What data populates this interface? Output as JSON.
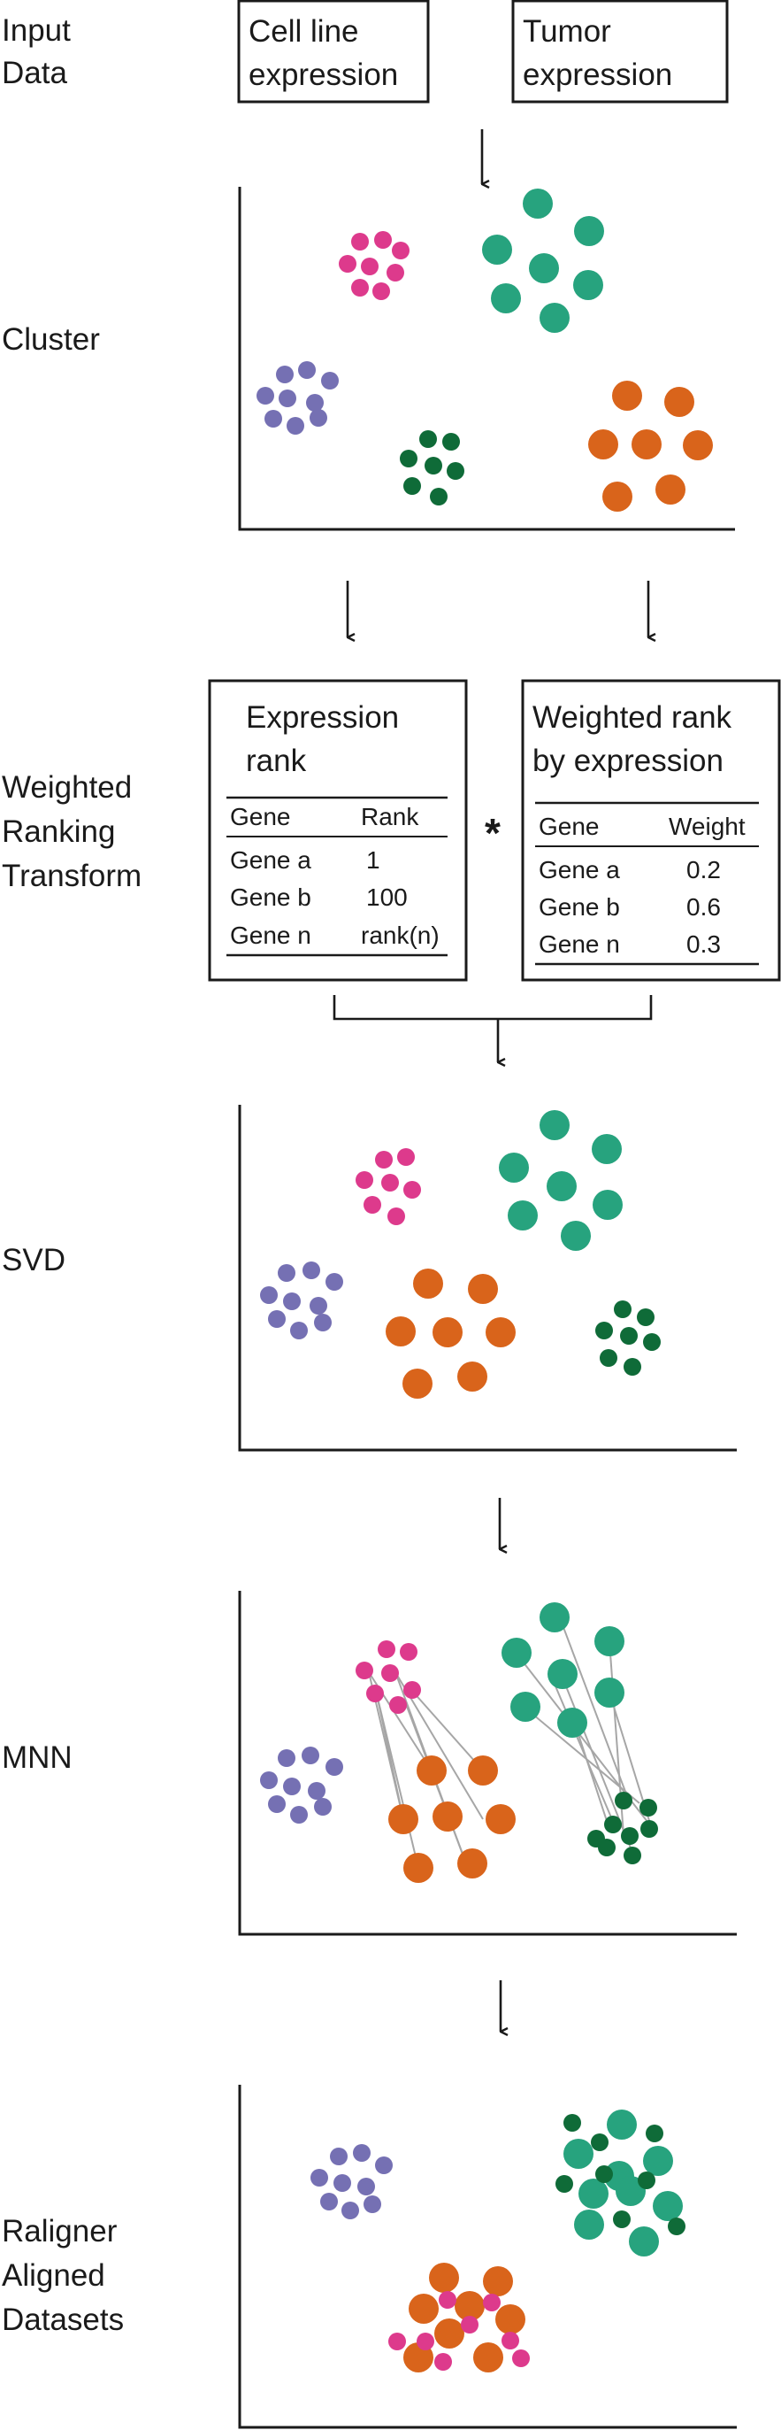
{
  "colors": {
    "magenta": "#dd3a8c",
    "teal": "#27a37e",
    "purple": "#7570b3",
    "darkgreen": "#0f6b38",
    "orange": "#d9641b",
    "mnn_link": "#a6a6a6",
    "ink": "#1a1a1a"
  },
  "steps": {
    "input": {
      "label_lines": [
        "Input",
        "Data"
      ]
    },
    "cluster": {
      "label_lines": [
        "Cluster"
      ]
    },
    "wrt": {
      "label_lines": [
        "Weighted",
        "Ranking",
        "Transform"
      ]
    },
    "svd": {
      "label_lines": [
        "SVD"
      ]
    },
    "mnn": {
      "label_lines": [
        "MNN"
      ]
    },
    "aligned": {
      "label_lines": [
        "Raligner",
        "Aligned",
        "Datasets"
      ]
    }
  },
  "input_boxes": [
    {
      "lines": [
        "Cell line",
        "expression"
      ]
    },
    {
      "lines": [
        "Tumor",
        "expression"
      ]
    }
  ],
  "rank_table": {
    "title_lines": [
      "Expression",
      "rank"
    ],
    "headers": [
      "Gene",
      "Rank"
    ],
    "rows": [
      [
        "Gene a",
        "1"
      ],
      [
        "Gene b",
        "100"
      ],
      [
        "Gene n",
        "rank(n)"
      ]
    ]
  },
  "multiply_symbol": "*",
  "weight_table": {
    "title_lines": [
      "Weighted rank",
      "by expression"
    ],
    "headers": [
      "Gene",
      "Weight"
    ],
    "rows": [
      [
        "Gene a",
        "0.2"
      ],
      [
        "Gene b",
        "0.6"
      ],
      [
        "Gene n",
        "0.3"
      ]
    ]
  }
}
